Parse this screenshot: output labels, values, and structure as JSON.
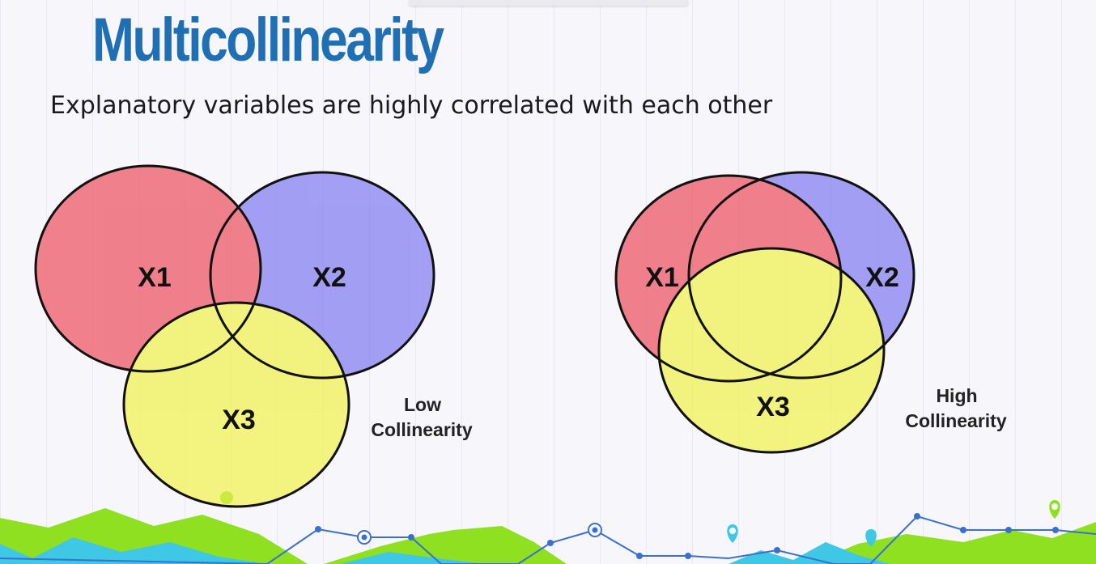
{
  "slide": {
    "title": "Multicollinearity",
    "subtitle": "Explanatory variables are highly correlated with each other"
  },
  "low_diagram": {
    "labels": {
      "x1": "X1",
      "x2": "X2",
      "x3": "X3"
    },
    "caption_line1": "Low",
    "caption_line2": "Collinearity"
  },
  "high_diagram": {
    "labels": {
      "x1": "X1",
      "x2": "X2",
      "x3": "X3"
    },
    "caption_line1": "High",
    "caption_line2": "Collinearity"
  },
  "colors": {
    "title": "#1f6fb5",
    "x1_fill": "#ee5f6c",
    "x2_fill": "#8a86f3",
    "x3_fill": "#f2f25c",
    "outline": "#111111",
    "footer_green": "#8ee021",
    "footer_cyan": "#3fc7e6",
    "footer_line": "#3a6fd0"
  }
}
